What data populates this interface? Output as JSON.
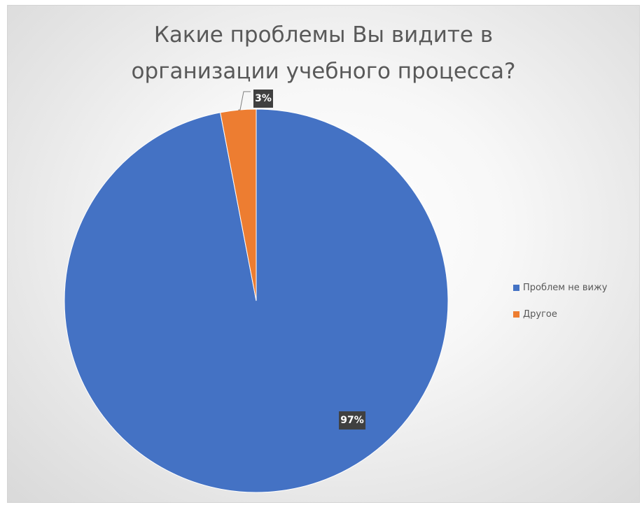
{
  "chart_data": {
    "type": "pie",
    "title": "Какие проблемы Вы видите в организации учебного процесса?",
    "title_lines": [
      "Какие проблемы Вы видите в",
      "организации учебного процесса?"
    ],
    "categories": [
      "Проблем не вижу",
      "Другое"
    ],
    "values": [
      97,
      3
    ],
    "labels": [
      "97%",
      "3%"
    ],
    "colors": [
      "#4472C4",
      "#ED7D31"
    ],
    "legend_position": "right"
  }
}
